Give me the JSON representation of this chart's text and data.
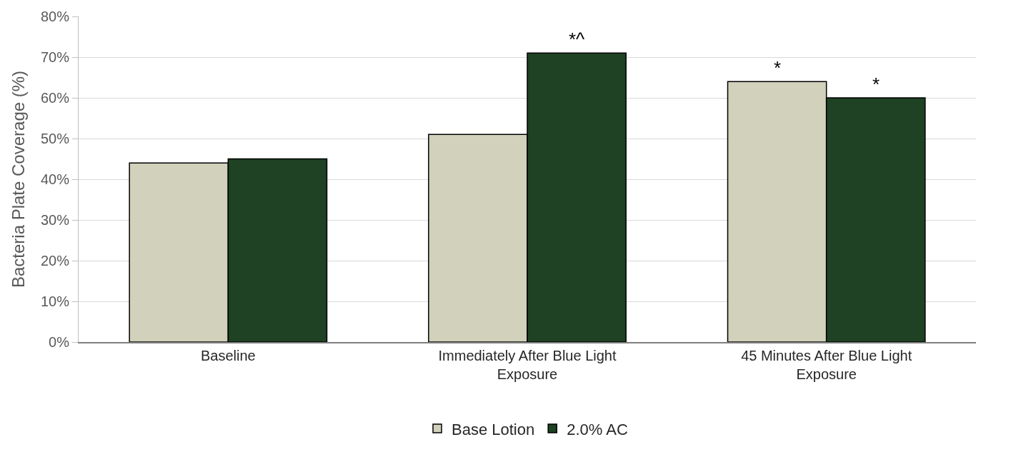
{
  "chart_data": {
    "type": "bar",
    "ylabel": "Bacteria Plate Coverage (%)",
    "categories": [
      "Baseline",
      "Immediately After Blue Light Exposure",
      "45 Minutes After Blue Light Exposure"
    ],
    "series": [
      {
        "name": "Base Lotion",
        "color": "#d1d1bc",
        "values": [
          44,
          51,
          64
        ]
      },
      {
        "name": "2.0% AC",
        "color": "#1e4223",
        "values": [
          45,
          71,
          60
        ]
      }
    ],
    "ylim": [
      0,
      80
    ],
    "yticks": [
      {
        "value": 0,
        "label": "0%"
      },
      {
        "value": 10,
        "label": "10%"
      },
      {
        "value": 20,
        "label": "20%"
      },
      {
        "value": 30,
        "label": "30%"
      },
      {
        "value": 40,
        "label": "40%"
      },
      {
        "value": 50,
        "label": "50%"
      },
      {
        "value": 60,
        "label": "60%"
      },
      {
        "value": 70,
        "label": "70%"
      },
      {
        "value": 80,
        "label": "80%"
      }
    ],
    "grid": "y",
    "legend": "bottom",
    "annotations": [
      {
        "text": "*^",
        "x": "Immediately After Blue Light Exposure",
        "y": 71
      },
      {
        "text": "*",
        "x": "45 Minutes After Blue Light Exposure",
        "y": 64
      },
      {
        "text": "*",
        "x": "45 Minutes After Blue Light Exposure",
        "y": 60
      }
    ]
  }
}
